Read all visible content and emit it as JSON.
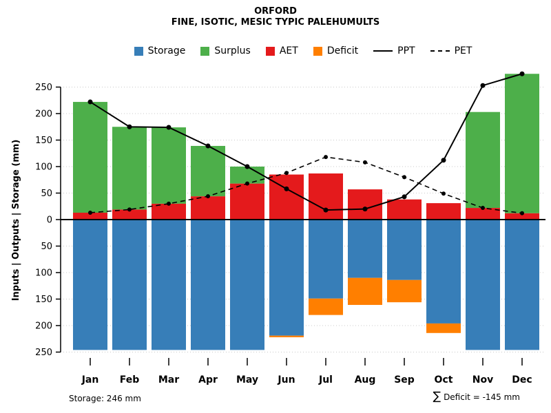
{
  "title": "ORFORD",
  "subtitle": "FINE, ISOTIC, MESIC TYPIC PALEHUMULTS",
  "footer": {
    "storage_note": "Storage: 246 mm",
    "sigma": "∑",
    "deficit_note": "Deficit = -145 mm"
  },
  "chart_data": {
    "type": "bar",
    "title": "ORFORD",
    "subtitle": "FINE, ISOTIC, MESIC TYPIC PALEHUMULTS",
    "ylabel": "Inputs | Outputs | Storage  (mm)",
    "categories": [
      "Jan",
      "Feb",
      "Mar",
      "Apr",
      "May",
      "Jun",
      "Jul",
      "Aug",
      "Sep",
      "Oct",
      "Nov",
      "Dec"
    ],
    "ylim": [
      -250,
      290
    ],
    "yticks": [
      250,
      200,
      150,
      100,
      50,
      0,
      -50,
      -100,
      -150,
      -200,
      -250
    ],
    "grid": true,
    "gridline_style": "dotted",
    "legend_position": "top",
    "axis_note": "bars below zero (Storage, Deficit) are plotted downward; negative ticks labeled with absolute values",
    "series": [
      {
        "name": "Storage",
        "style": "bar-below-zero",
        "color": "#377EB8",
        "values": [
          246,
          246,
          246,
          246,
          246,
          219,
          149,
          110,
          114,
          196,
          246,
          246
        ]
      },
      {
        "name": "Surplus",
        "style": "bar-above-zero-stack-top",
        "color": "#4DAF4A",
        "values": [
          209,
          156,
          144,
          95,
          32,
          0,
          0,
          0,
          0,
          0,
          181,
          263
        ]
      },
      {
        "name": "AET",
        "style": "bar-above-zero-stack-bottom",
        "color": "#E41A1C",
        "values": [
          13,
          19,
          30,
          44,
          68,
          85,
          87,
          57,
          38,
          31,
          22,
          12
        ]
      },
      {
        "name": "Deficit",
        "style": "bar-below-zero-stacked-under-storage",
        "color": "#FF7F00",
        "values": [
          0,
          0,
          0,
          0,
          0,
          3,
          31,
          51,
          42,
          18,
          0,
          0
        ]
      },
      {
        "name": "PPT",
        "style": "line-solid-with-points",
        "color": "#000000",
        "values": [
          222,
          175,
          174,
          139,
          100,
          58,
          18,
          20,
          43,
          112,
          253,
          275
        ]
      },
      {
        "name": "PET",
        "style": "line-dashed-with-points",
        "color": "#000000",
        "values": [
          13,
          19,
          30,
          44,
          68,
          88,
          118,
          108,
          80,
          49,
          22,
          12
        ]
      }
    ],
    "annotations": [
      "Storage: 246 mm",
      "∑ Deficit = -145 mm"
    ]
  }
}
